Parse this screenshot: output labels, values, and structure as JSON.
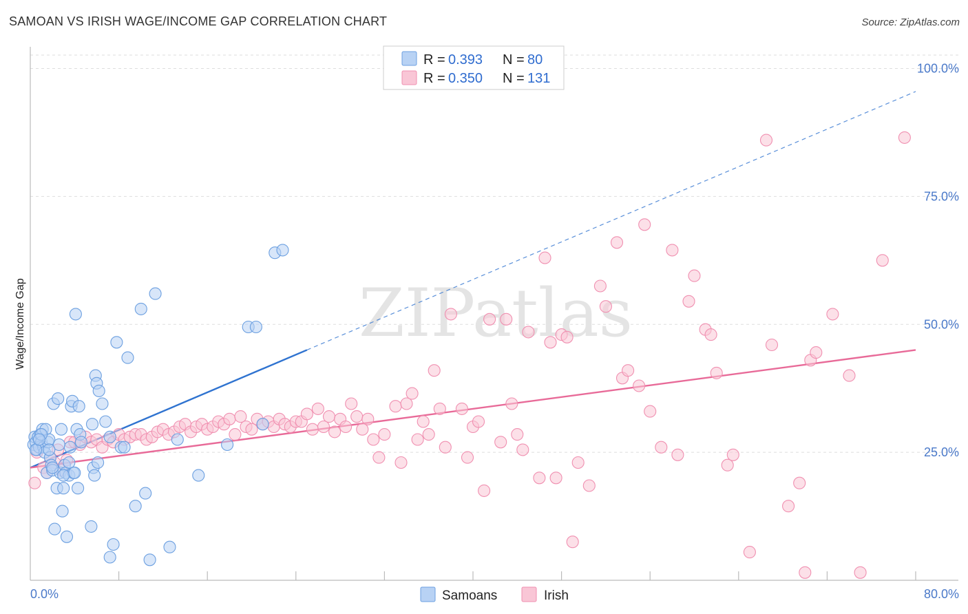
{
  "title": "SAMOAN VS IRISH WAGE/INCOME GAP CORRELATION CHART",
  "source": "Source: ZipAtlas.com",
  "watermark": "ZIPatlas",
  "colors": {
    "samoan": "#6b9fe0",
    "samoan_fill": "#b8d2f4",
    "samoan_line": "#2f73d0",
    "irish": "#f08fb0",
    "irish_fill": "#f9c6d6",
    "irish_line": "#e86a98",
    "axis_label": "#4a79c9",
    "grid": "#dddddd"
  },
  "legend": {
    "rows": [
      {
        "series": "Samoans",
        "r_label": "R =",
        "r_value": "0.393",
        "n_label": "N =",
        "n_value": "80"
      },
      {
        "series": "Irish",
        "r_label": "R =",
        "r_value": "0.350",
        "n_label": "N =",
        "n_value": "131"
      }
    ]
  },
  "bottom_legend": [
    "Samoans",
    "Irish"
  ],
  "chart_data": {
    "type": "scatter",
    "title": "SAMOAN VS IRISH WAGE/INCOME GAP CORRELATION CHART",
    "xlabel": "",
    "ylabel": "Wage/Income Gap",
    "xlim": [
      0,
      80
    ],
    "ylim": [
      0,
      100
    ],
    "x_tick_labels": [
      "0.0%",
      "80.0%"
    ],
    "y_ticks": [
      25,
      50,
      75,
      100
    ],
    "y_tick_labels": [
      "25.0%",
      "50.0%",
      "75.0%",
      "100.0%"
    ],
    "x_minor_ticks": [
      8,
      16,
      24,
      32,
      40,
      48,
      56,
      64,
      72,
      80
    ],
    "grid": true,
    "legend_position": "top-center",
    "series": [
      {
        "name": "Samoans",
        "r": 0.393,
        "n": 80,
        "trend": {
          "x0": 0,
          "y0": 22,
          "x1": 25,
          "y1": 45,
          "extended_x1": 80,
          "extended_y1": 95.5
        },
        "points": [
          [
            0.3,
            26.5
          ],
          [
            0.4,
            28
          ],
          [
            0.5,
            27
          ],
          [
            0.6,
            25.5
          ],
          [
            0.7,
            28
          ],
          [
            0.8,
            26
          ],
          [
            0.9,
            28.5
          ],
          [
            1.0,
            27
          ],
          [
            1.1,
            29.5
          ],
          [
            1.2,
            26
          ],
          [
            1.3,
            25
          ],
          [
            1.4,
            29.5
          ],
          [
            1.5,
            21
          ],
          [
            1.6,
            27
          ],
          [
            1.7,
            27.5
          ],
          [
            1.8,
            24
          ],
          [
            1.9,
            22.5
          ],
          [
            2.0,
            21.5
          ],
          [
            2.1,
            34.5
          ],
          [
            2.2,
            10
          ],
          [
            2.4,
            18
          ],
          [
            2.5,
            35.5
          ],
          [
            2.6,
            26.5
          ],
          [
            2.7,
            21
          ],
          [
            2.8,
            29.5
          ],
          [
            2.9,
            13.5
          ],
          [
            3.0,
            18
          ],
          [
            3.1,
            22.5
          ],
          [
            3.2,
            21
          ],
          [
            3.3,
            8.5
          ],
          [
            3.5,
            20.5
          ],
          [
            3.6,
            26
          ],
          [
            3.7,
            34
          ],
          [
            3.8,
            35
          ],
          [
            3.9,
            21
          ],
          [
            4.1,
            52
          ],
          [
            4.2,
            29.5
          ],
          [
            4.3,
            18
          ],
          [
            4.4,
            34
          ],
          [
            4.5,
            28.5
          ],
          [
            4.6,
            27
          ],
          [
            5.5,
            10.5
          ],
          [
            5.6,
            30.5
          ],
          [
            5.7,
            22
          ],
          [
            5.8,
            20.5
          ],
          [
            5.9,
            40
          ],
          [
            6.0,
            38.5
          ],
          [
            6.1,
            23
          ],
          [
            6.2,
            37
          ],
          [
            6.5,
            34.5
          ],
          [
            6.8,
            31
          ],
          [
            7.2,
            4.5
          ],
          [
            7.5,
            7
          ],
          [
            7.8,
            46.5
          ],
          [
            8.2,
            26
          ],
          [
            8.8,
            43.5
          ],
          [
            9.5,
            14.5
          ],
          [
            10.0,
            53
          ],
          [
            10.4,
            17
          ],
          [
            10.8,
            4
          ],
          [
            11.3,
            56
          ],
          [
            12.6,
            6.5
          ],
          [
            13.3,
            27.5
          ],
          [
            15.2,
            20.5
          ],
          [
            17.8,
            26.5
          ],
          [
            19.7,
            49.5
          ],
          [
            20.4,
            49.5
          ],
          [
            21.0,
            30.5
          ],
          [
            22.1,
            64
          ],
          [
            22.8,
            64.5
          ],
          [
            0.5,
            25.5
          ],
          [
            1.0,
            28.5
          ],
          [
            2.0,
            22
          ],
          [
            3.0,
            20.5
          ],
          [
            3.5,
            23
          ],
          [
            4.0,
            21
          ],
          [
            7.2,
            28
          ],
          [
            8.5,
            26
          ],
          [
            1.7,
            25.5
          ],
          [
            0.8,
            27.5
          ]
        ]
      },
      {
        "name": "Irish",
        "r": 0.35,
        "n": 131,
        "trend": {
          "x0": 0,
          "y0": 22,
          "x1": 80,
          "y1": 45
        },
        "points": [
          [
            0.4,
            19
          ],
          [
            0.6,
            25
          ],
          [
            1.2,
            22
          ],
          [
            1.5,
            21
          ],
          [
            1.8,
            24
          ],
          [
            2.2,
            23
          ],
          [
            2.5,
            25.5
          ],
          [
            2.8,
            21.5
          ],
          [
            3.3,
            23.5
          ],
          [
            3.6,
            27
          ],
          [
            4.0,
            27
          ],
          [
            4.5,
            26.5
          ],
          [
            5.0,
            28
          ],
          [
            5.5,
            27
          ],
          [
            6.0,
            27.5
          ],
          [
            6.5,
            26
          ],
          [
            7.0,
            27.5
          ],
          [
            7.5,
            27
          ],
          [
            8.0,
            28.5
          ],
          [
            8.5,
            27.5
          ],
          [
            9.0,
            28
          ],
          [
            9.5,
            28.5
          ],
          [
            10.0,
            28.5
          ],
          [
            10.5,
            27.5
          ],
          [
            11.0,
            28
          ],
          [
            11.5,
            29
          ],
          [
            12.0,
            29.5
          ],
          [
            12.5,
            28.5
          ],
          [
            13.0,
            29
          ],
          [
            13.5,
            30
          ],
          [
            14.0,
            30.5
          ],
          [
            14.5,
            29
          ],
          [
            15.0,
            30
          ],
          [
            15.5,
            30.5
          ],
          [
            16.0,
            29.5
          ],
          [
            16.5,
            30
          ],
          [
            17.0,
            31
          ],
          [
            17.5,
            30.5
          ],
          [
            18.0,
            31.5
          ],
          [
            18.5,
            28.5
          ],
          [
            19.0,
            32
          ],
          [
            19.5,
            30
          ],
          [
            20.0,
            29.5
          ],
          [
            20.5,
            31.5
          ],
          [
            21.0,
            30.5
          ],
          [
            21.5,
            31
          ],
          [
            22.0,
            30
          ],
          [
            22.5,
            31.5
          ],
          [
            23.0,
            30.5
          ],
          [
            23.5,
            30
          ],
          [
            24.0,
            31
          ],
          [
            24.5,
            31
          ],
          [
            25.0,
            32.5
          ],
          [
            25.5,
            29.5
          ],
          [
            26.0,
            33.5
          ],
          [
            26.5,
            30
          ],
          [
            27.0,
            32
          ],
          [
            27.5,
            29
          ],
          [
            28.0,
            31.5
          ],
          [
            28.5,
            30
          ],
          [
            29.0,
            34.5
          ],
          [
            29.5,
            32
          ],
          [
            30.0,
            29.5
          ],
          [
            30.5,
            31.5
          ],
          [
            31.0,
            27.5
          ],
          [
            31.5,
            24
          ],
          [
            32.0,
            28.5
          ],
          [
            33.0,
            34
          ],
          [
            33.5,
            23
          ],
          [
            34.0,
            34.5
          ],
          [
            34.5,
            36.5
          ],
          [
            35.0,
            27.5
          ],
          [
            35.5,
            31
          ],
          [
            36.0,
            28.5
          ],
          [
            36.5,
            41
          ],
          [
            37.0,
            33.5
          ],
          [
            37.5,
            26
          ],
          [
            38.0,
            52
          ],
          [
            39.0,
            33.5
          ],
          [
            39.5,
            24
          ],
          [
            40.0,
            30
          ],
          [
            40.5,
            31
          ],
          [
            41.0,
            17.5
          ],
          [
            41.5,
            51
          ],
          [
            42.5,
            27
          ],
          [
            43.0,
            51
          ],
          [
            43.5,
            34.5
          ],
          [
            44.0,
            28.5
          ],
          [
            44.5,
            25.5
          ],
          [
            45.0,
            48.5
          ],
          [
            46.0,
            20
          ],
          [
            46.5,
            63
          ],
          [
            47.0,
            46.5
          ],
          [
            47.5,
            20
          ],
          [
            48.0,
            48
          ],
          [
            48.5,
            47.5
          ],
          [
            49.0,
            7.5
          ],
          [
            49.5,
            23
          ],
          [
            50.5,
            18.5
          ],
          [
            51.5,
            57.5
          ],
          [
            52.0,
            53.5
          ],
          [
            53.0,
            66
          ],
          [
            53.5,
            39.5
          ],
          [
            54.0,
            41
          ],
          [
            55.0,
            38
          ],
          [
            55.5,
            69.5
          ],
          [
            56.0,
            33
          ],
          [
            57.0,
            26
          ],
          [
            58.0,
            64.5
          ],
          [
            58.5,
            24.5
          ],
          [
            59.5,
            54.5
          ],
          [
            60.0,
            59.5
          ],
          [
            61.0,
            49
          ],
          [
            61.5,
            48
          ],
          [
            62.0,
            40.5
          ],
          [
            63.0,
            22.5
          ],
          [
            63.5,
            24.5
          ],
          [
            65.0,
            5.5
          ],
          [
            66.5,
            86
          ],
          [
            67.0,
            46
          ],
          [
            68.5,
            14.5
          ],
          [
            69.5,
            19
          ],
          [
            70.5,
            43
          ],
          [
            71.0,
            44.5
          ],
          [
            72.5,
            52
          ],
          [
            74.0,
            40
          ],
          [
            75.0,
            1.5
          ],
          [
            77.0,
            62.5
          ],
          [
            79.0,
            86.5
          ],
          [
            70.0,
            1.5
          ]
        ]
      }
    ]
  }
}
